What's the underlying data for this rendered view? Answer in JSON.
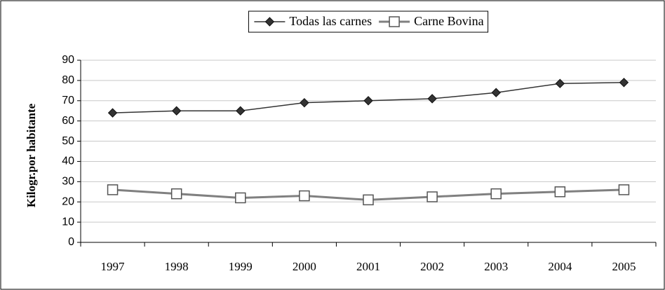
{
  "chart_data": {
    "type": "line",
    "y_label": "Kilogr.por habitante",
    "categories": [
      "1997",
      "1998",
      "1999",
      "2000",
      "2001",
      "2002",
      "2003",
      "2004",
      "2005"
    ],
    "series": [
      {
        "name": "Todas las carnes",
        "color": "#333333",
        "marker": "diamond",
        "values": [
          64,
          65,
          65,
          69,
          70,
          71,
          74,
          78.5,
          79
        ]
      },
      {
        "name": "Carne Bovina",
        "color": "#808080",
        "marker": "square",
        "values": [
          26,
          24,
          22,
          23,
          21,
          22.5,
          24,
          25,
          26
        ]
      }
    ],
    "ylim": [
      0,
      90
    ],
    "yticks": [
      0,
      10,
      20,
      30,
      40,
      50,
      60,
      70,
      80,
      90
    ],
    "grid": true,
    "legend": "top"
  }
}
